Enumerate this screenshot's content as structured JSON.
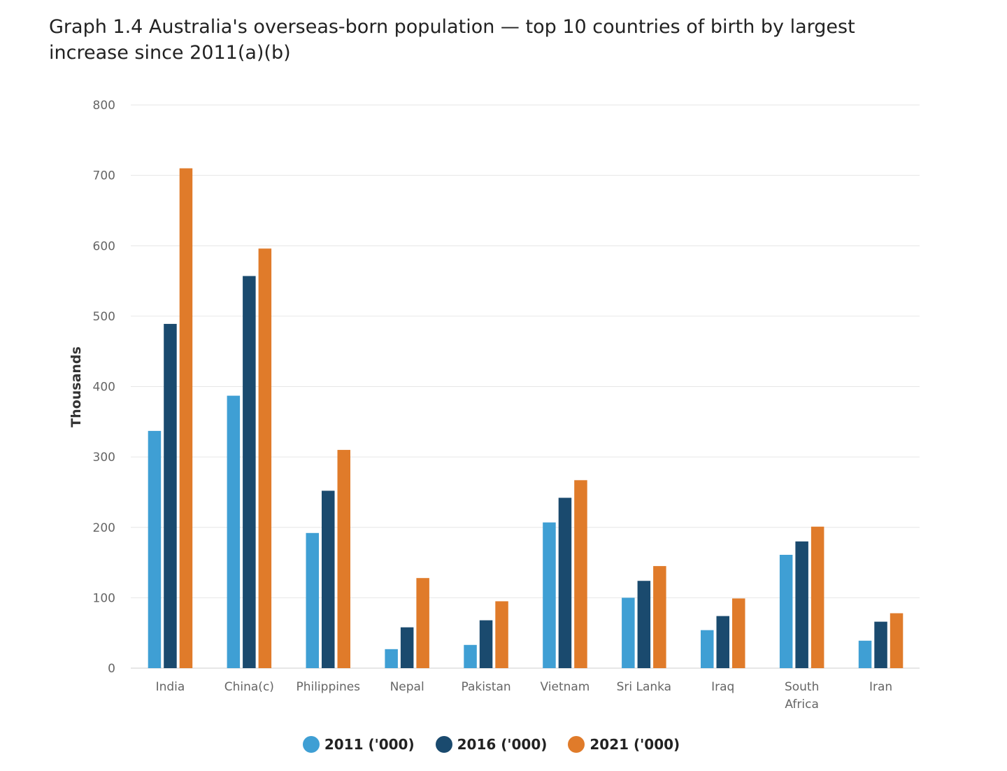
{
  "chart_data": {
    "type": "bar",
    "title": "Graph 1.4 Australia's overseas-born population — top 10 countries of birth by largest increase since 2011(a)(b)",
    "ylabel": "Thousands",
    "xlabel": "",
    "ylim": [
      0,
      800
    ],
    "yticks": [
      0,
      100,
      200,
      300,
      400,
      500,
      600,
      700,
      800
    ],
    "grid": true,
    "legend_position": "bottom",
    "categories": [
      "India",
      "China(c)",
      "Philippines",
      "Nepal",
      "Pakistan",
      "Vietnam",
      "Sri Lanka",
      "Iraq",
      "South Africa",
      "Iran"
    ],
    "series": [
      {
        "name": "2011 ('000)",
        "color": "#3f9fd4",
        "values": [
          337,
          387,
          192,
          27,
          33,
          207,
          100,
          54,
          161,
          39
        ]
      },
      {
        "name": "2016 ('000)",
        "color": "#1a4a6e",
        "values": [
          489,
          557,
          252,
          58,
          68,
          242,
          124,
          74,
          180,
          66
        ]
      },
      {
        "name": "2021 ('000)",
        "color": "#e07b2a",
        "values": [
          710,
          596,
          310,
          128,
          95,
          267,
          145,
          99,
          201,
          78
        ]
      }
    ]
  }
}
